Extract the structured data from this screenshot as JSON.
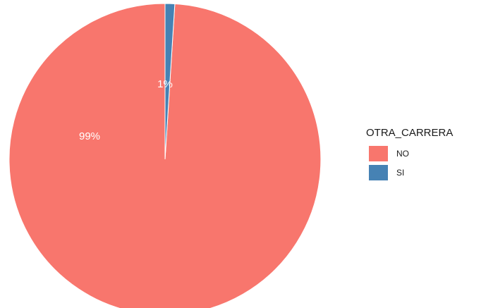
{
  "chart_data": {
    "type": "pie",
    "title": "",
    "legend_title": "OTRA_CARRERA",
    "legend_position": "right",
    "slices": [
      {
        "label": "NO",
        "value": 99,
        "text": "99%",
        "color": "#F8766D"
      },
      {
        "label": "SI",
        "value": 1,
        "text": "1%",
        "color": "#4682B4"
      }
    ]
  }
}
